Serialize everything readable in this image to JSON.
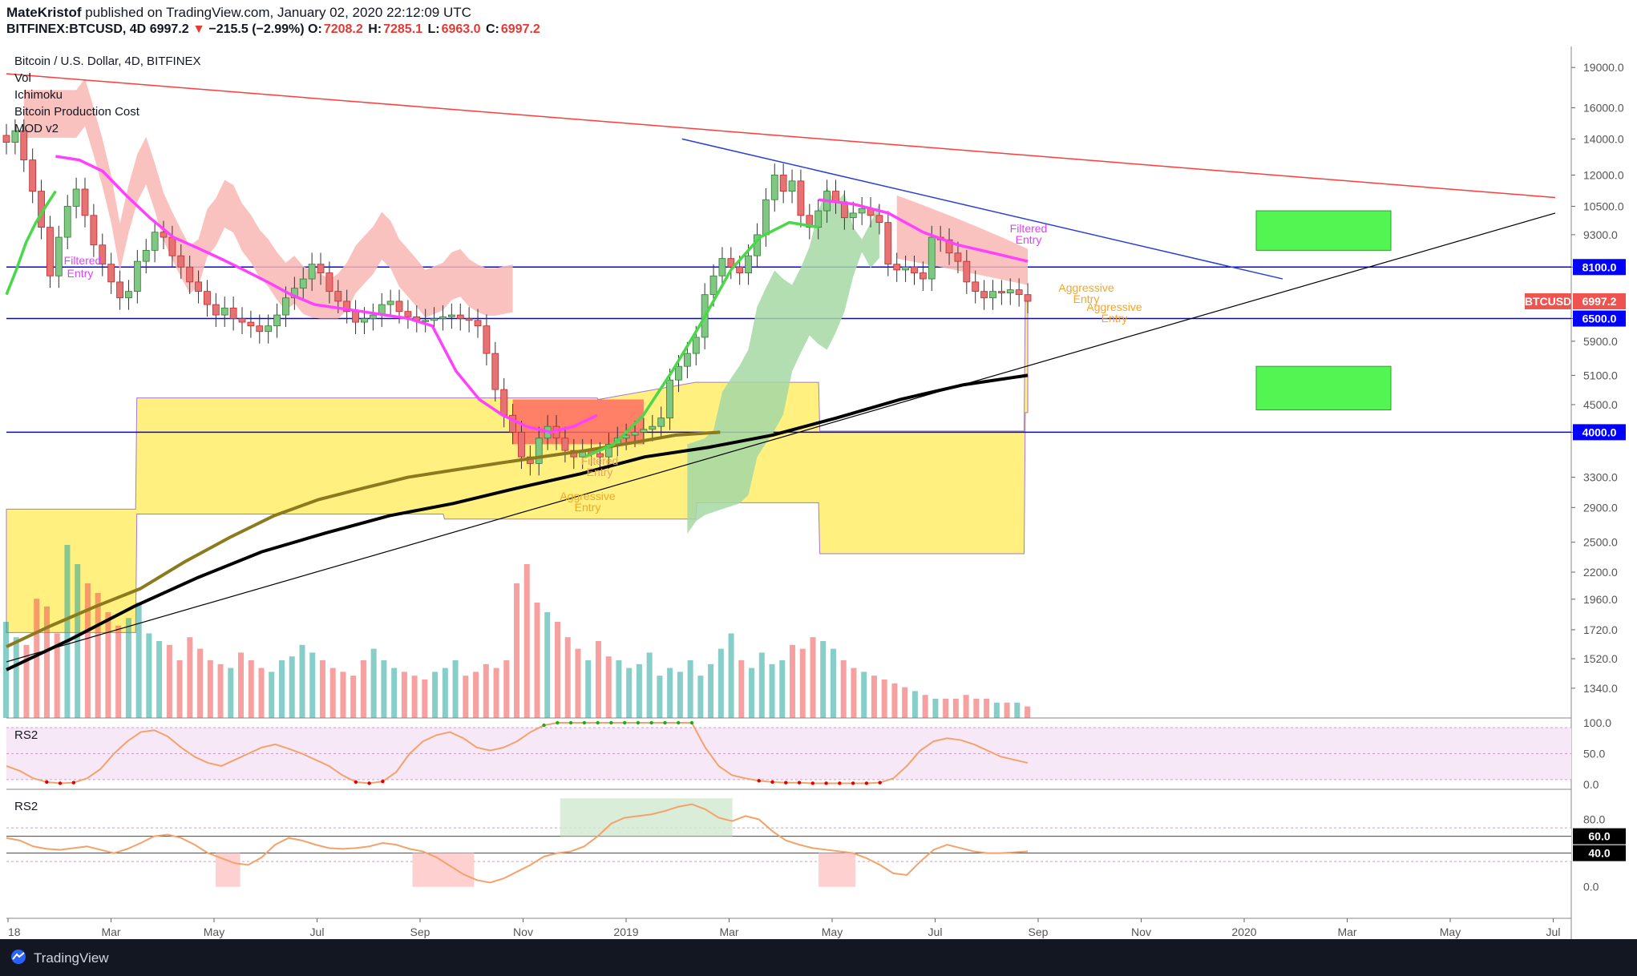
{
  "header": {
    "publisher": "MateKristof",
    "published_text": "published on TradingView.com, January 02, 2020 22:12:09 UTC",
    "symbol": "BITFINEX:BTCUSD, 4D",
    "last": "6997.2",
    "change": "−215.5 (−2.99%)",
    "o_label": "O:",
    "o_value": "7208.2",
    "h_label": "H:",
    "h_value": "7285.1",
    "l_label": "L:",
    "l_value": "6963.0",
    "c_label": "C:",
    "c_value": "6997.2"
  },
  "legend": {
    "title": "Bitcoin / U.S. Dollar, 4D, BITFINEX",
    "items": [
      "Vol",
      "Ichimoku",
      "Bitcoin Production Cost",
      "MOD v2"
    ]
  },
  "footer": {
    "brand": "TradingView"
  },
  "colors": {
    "bull": "#26a69a",
    "bear": "#ef5350",
    "magenta": "#ff40ff",
    "green": "#48d848",
    "black_ma": "#000000",
    "olive_ma": "#8c7a1e",
    "prod_cost": "#fff07a",
    "cloud_bear": "#f9b7b3",
    "cloud_bull": "#a5d8a5",
    "box_green": "#52f552",
    "hline_blue": "#0000ff",
    "trend_red": "#ff3b3b"
  },
  "chart_data": [
    {
      "type": "candlestick",
      "title": "",
      "scale": "log",
      "ylim": [
        1180,
        20500
      ],
      "yticks": [
        19000,
        16000,
        14000,
        12000,
        10500,
        9300,
        8100,
        6500,
        5900,
        5100,
        4500,
        4000,
        3300,
        2900,
        2500,
        2200,
        1960,
        1720,
        1520,
        1340
      ],
      "ytick_labels": [
        "19000.0",
        "16000.0",
        "14000.0",
        "12000.0",
        "10500.0",
        "9300.0",
        "8100.0",
        "6500.0",
        "5900.0",
        "5100.0",
        "4500.0",
        "4000.0",
        "3300.0",
        "2900.0",
        "2500.0",
        "2200.0",
        "1960.0",
        "1720.0",
        "1520.0",
        "1340.0"
      ],
      "xticks": [
        "18",
        "Mar",
        "May",
        "Jul",
        "Sep",
        "Nov",
        "2019",
        "Mar",
        "May",
        "Jul",
        "Sep",
        "Nov",
        "2020",
        "Mar",
        "May",
        "Jul"
      ],
      "price_tags": [
        {
          "label": "8100.0",
          "value": 8100,
          "color": "#0000ff"
        },
        {
          "label": "6500.0",
          "value": 6500,
          "color": "#0000ff"
        },
        {
          "label": "4000.0",
          "value": 4000,
          "color": "#0000ff"
        },
        {
          "label": "BTCUSD",
          "value": 6997.2,
          "color": "#ef5350"
        },
        {
          "label": "6997.2",
          "value": 6997.2,
          "color": "#ef5350"
        }
      ],
      "horizontal_lines": [
        8100,
        6500,
        4000
      ],
      "annotations": [
        {
          "text": "Filtered",
          "color": "#e040fb"
        },
        {
          "text": "Entry",
          "color": "#e040fb"
        },
        {
          "text": "Filtered",
          "color": "#e040fb"
        },
        {
          "text": "Entry",
          "color": "#e040fb"
        },
        {
          "text": "Filtered",
          "color": "#f0a060"
        },
        {
          "text": "Entry",
          "color": "#f0a060"
        },
        {
          "text": "Aggressive",
          "color": "#f5a623"
        },
        {
          "text": "Entry",
          "color": "#f5a623"
        },
        {
          "text": "Aggressive",
          "color": "#f5a623"
        },
        {
          "text": "Entry",
          "color": "#f5a623"
        },
        {
          "text": "Aggressive",
          "color": "#f5a623"
        },
        {
          "text": "Entry",
          "color": "#f5a623"
        }
      ],
      "close_series": [
        13800,
        14500,
        12800,
        11200,
        9600,
        7800,
        9200,
        10500,
        11300,
        10100,
        8900,
        8200,
        7600,
        7100,
        7300,
        8300,
        8700,
        9400,
        9200,
        8500,
        8100,
        7600,
        7300,
        6900,
        6600,
        6800,
        6500,
        6400,
        6300,
        6150,
        6300,
        6600,
        7100,
        7400,
        7700,
        8200,
        7900,
        7300,
        7000,
        6700,
        6400,
        6500,
        6600,
        6900,
        7000,
        6700,
        6550,
        6450,
        6450,
        6500,
        6550,
        6600,
        6500,
        6450,
        6300,
        5600,
        4800,
        4300,
        4000,
        3600,
        3500,
        3900,
        4100,
        3900,
        3700,
        3600,
        3700,
        3650,
        3600,
        3800,
        3900,
        3950,
        4000,
        4050,
        4100,
        4250,
        5000,
        5300,
        5600,
        6000,
        7200,
        7800,
        8400,
        8100,
        7900,
        8500,
        9300,
        10800,
        12000,
        11200,
        11700,
        10100,
        9600,
        10300,
        11200,
        10700,
        10000,
        10200,
        10400,
        10100,
        9800,
        8200,
        8000,
        8100,
        7900,
        7700,
        9200,
        9100,
        8600,
        8300,
        7600,
        7300,
        7100,
        7300,
        7250,
        7350,
        7200,
        6997
      ],
      "olive_ma": [
        1600,
        1750,
        1900,
        2050,
        2300,
        2550,
        2800,
        3000,
        3150,
        3300,
        3400,
        3500,
        3600,
        3700,
        3820,
        3950,
        4000
      ],
      "black_ma": [
        1450,
        1650,
        1900,
        2150,
        2400,
        2600,
        2800,
        2950,
        3150,
        3350,
        3600,
        3750,
        3950,
        4250,
        4600,
        4900,
        5100
      ],
      "volume": [
        50,
        42,
        38,
        62,
        58,
        44,
        90,
        80,
        70,
        65,
        55,
        48,
        52,
        60,
        44,
        40,
        38,
        30,
        42,
        36,
        30,
        28,
        26,
        34,
        30,
        26,
        24,
        30,
        32,
        38,
        34,
        30,
        26,
        24,
        22,
        30,
        36,
        30,
        26,
        24,
        22,
        20,
        24,
        26,
        30,
        22,
        24,
        28,
        26,
        30,
        70,
        80,
        60,
        55,
        50,
        42,
        36,
        30,
        40,
        32,
        30,
        26,
        28,
        34,
        22,
        26,
        24,
        30,
        22,
        28,
        36,
        44,
        30,
        26,
        34,
        28,
        30,
        38,
        36,
        42,
        40,
        36,
        30,
        26,
        24,
        22,
        20,
        18,
        16,
        14,
        12,
        10,
        10,
        10,
        12,
        10,
        10,
        8,
        8,
        8,
        6
      ],
      "cloud": "Ichimoku cloud: bearish (pink) above price until early 2019, bullish (green) during 2019 rally, bearish again late 2019",
      "production_cost_band": "Bitcoin Production Cost band (yellow step channel)",
      "target_boxes": [
        "upper green box ~8700–10300",
        "lower green box ~4400–5300"
      ]
    },
    {
      "type": "line",
      "title": "RS2",
      "ylim": [
        0,
        100
      ],
      "yticks": [
        100,
        50,
        0
      ],
      "ytick_labels": [
        "100.0",
        "50.0",
        "0.0"
      ],
      "values": [
        30,
        22,
        10,
        4,
        2,
        3,
        10,
        25,
        50,
        70,
        85,
        88,
        78,
        60,
        45,
        35,
        30,
        40,
        50,
        60,
        65,
        58,
        50,
        40,
        30,
        15,
        4,
        2,
        5,
        20,
        50,
        70,
        80,
        85,
        75,
        60,
        55,
        60,
        70,
        85,
        96,
        100,
        100,
        100,
        100,
        100,
        100,
        100,
        100,
        100,
        100,
        100,
        60,
        30,
        15,
        10,
        6,
        4,
        3,
        3,
        2,
        2,
        2,
        2,
        2,
        3,
        10,
        30,
        55,
        70,
        75,
        72,
        65,
        55,
        45,
        40,
        35
      ]
    },
    {
      "type": "line",
      "title": "RS2",
      "ylim": [
        -5,
        110
      ],
      "yticks": [
        80,
        60,
        40,
        0
      ],
      "ytick_labels": [
        "80.0",
        "60.0",
        "40.0",
        "0.0"
      ],
      "guide_lines": [
        60,
        40
      ],
      "values": [
        58,
        55,
        48,
        45,
        44,
        46,
        48,
        44,
        40,
        45,
        52,
        60,
        62,
        58,
        50,
        40,
        34,
        28,
        26,
        35,
        50,
        58,
        55,
        50,
        46,
        45,
        46,
        48,
        52,
        50,
        45,
        42,
        35,
        25,
        15,
        8,
        5,
        10,
        18,
        26,
        36,
        40,
        42,
        48,
        60,
        75,
        82,
        84,
        86,
        90,
        95,
        98,
        92,
        82,
        78,
        84,
        80,
        66,
        55,
        50,
        46,
        44,
        42,
        40,
        34,
        26,
        16,
        14,
        30,
        44,
        50,
        46,
        42,
        40,
        40,
        41,
        42
      ]
    }
  ]
}
